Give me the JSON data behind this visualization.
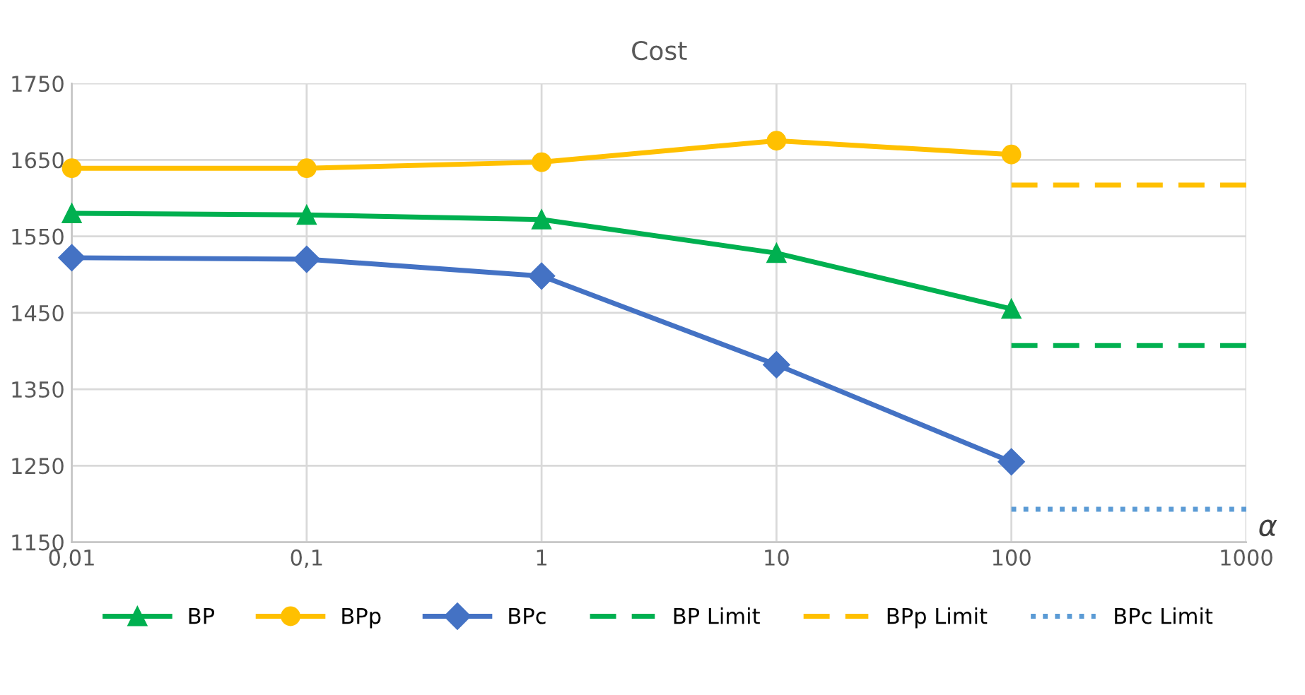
{
  "chart_data": {
    "type": "line",
    "title": "Cost",
    "xlabel": "α",
    "log": "x",
    "xlim": [
      0.01,
      1000
    ],
    "xticks": [
      {
        "value": 0.01,
        "label": "0,01"
      },
      {
        "value": 0.1,
        "label": "0,1"
      },
      1,
      10,
      100,
      1000
    ],
    "ylim": [
      1150,
      1750
    ],
    "yticks": [
      1150,
      1250,
      1350,
      1450,
      1550,
      1650,
      1750
    ],
    "grid": true,
    "legend": "bottom",
    "series": [
      {
        "name": "BP",
        "color": "#00b050",
        "marker": "triangle",
        "line_style": "solid",
        "x": [
          0.01,
          0.1,
          1,
          10,
          100
        ],
        "values": [
          1580,
          1578,
          1572,
          1528,
          1455
        ]
      },
      {
        "name": "BPp",
        "color": "#ffc000",
        "marker": "circle",
        "line_style": "solid",
        "x": [
          0.01,
          0.1,
          1,
          10,
          100
        ],
        "values": [
          1639,
          1639,
          1647,
          1675,
          1657
        ]
      },
      {
        "name": "BPc",
        "color": "#4472c4",
        "marker": "diamond",
        "line_style": "solid",
        "x": [
          0.01,
          0.1,
          1,
          10,
          100
        ],
        "values": [
          1522,
          1520,
          1498,
          1382,
          1255
        ]
      },
      {
        "name": "BP Limit",
        "color": "#00b050",
        "marker": "none",
        "line_style": "dashed",
        "x": [
          100,
          1000
        ],
        "values": [
          1407,
          1407
        ]
      },
      {
        "name": "BPp Limit",
        "color": "#ffc000",
        "marker": "none",
        "line_style": "dashed",
        "x": [
          100,
          1000
        ],
        "values": [
          1617,
          1617
        ]
      },
      {
        "name": "BPc Limit",
        "color": "#5b9bd5",
        "marker": "none",
        "line_style": "dotted",
        "x": [
          100,
          1000
        ],
        "values": [
          1193,
          1193
        ]
      }
    ]
  }
}
